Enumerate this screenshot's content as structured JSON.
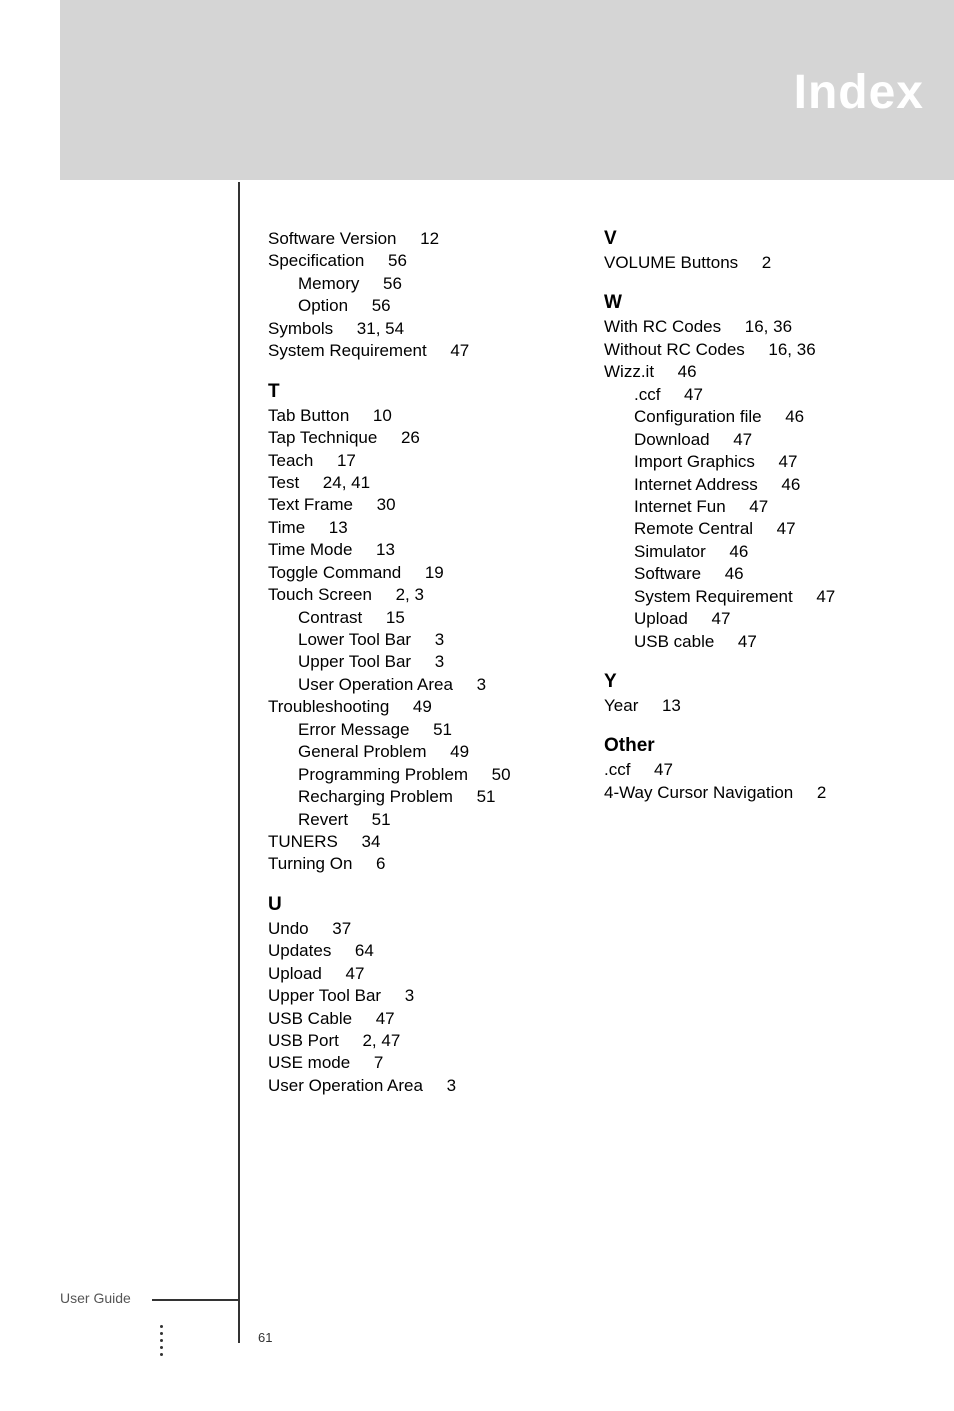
{
  "header": {
    "title": "Index"
  },
  "col1": [
    {
      "type": "entry",
      "text": "Software Version     12"
    },
    {
      "type": "entry",
      "text": "Specification     56"
    },
    {
      "type": "sub",
      "text": "Memory     56"
    },
    {
      "type": "sub",
      "text": "Option     56"
    },
    {
      "type": "entry",
      "text": "Symbols     31, 54"
    },
    {
      "type": "entry",
      "text": "System Requirement     47"
    },
    {
      "type": "letter",
      "text": "T"
    },
    {
      "type": "entry",
      "text": "Tab Button     10"
    },
    {
      "type": "entry",
      "text": "Tap Technique     26"
    },
    {
      "type": "entry",
      "text": "Teach     17"
    },
    {
      "type": "entry",
      "text": "Test     24, 41"
    },
    {
      "type": "entry",
      "text": "Text Frame     30"
    },
    {
      "type": "entry",
      "text": "Time     13"
    },
    {
      "type": "entry",
      "text": "Time Mode     13"
    },
    {
      "type": "entry",
      "text": "Toggle Command     19"
    },
    {
      "type": "entry",
      "text": "Touch Screen     2, 3"
    },
    {
      "type": "sub",
      "text": "Contrast     15"
    },
    {
      "type": "sub",
      "text": "Lower Tool Bar     3"
    },
    {
      "type": "sub",
      "text": "Upper Tool Bar     3"
    },
    {
      "type": "sub",
      "text": "User Operation Area     3"
    },
    {
      "type": "entry",
      "text": "Troubleshooting     49"
    },
    {
      "type": "sub",
      "text": "Error Message     51"
    },
    {
      "type": "sub",
      "text": "General Problem     49"
    },
    {
      "type": "sub",
      "text": "Programming Problem     50"
    },
    {
      "type": "sub",
      "text": "Recharging Problem     51"
    },
    {
      "type": "sub",
      "text": "Revert     51"
    },
    {
      "type": "entry",
      "text": "TUNERS     34"
    },
    {
      "type": "entry",
      "text": "Turning On     6"
    },
    {
      "type": "letter",
      "text": "U"
    },
    {
      "type": "entry",
      "text": "Undo     37"
    },
    {
      "type": "entry",
      "text": "Updates     64"
    },
    {
      "type": "entry",
      "text": "Upload     47"
    },
    {
      "type": "entry",
      "text": "Upper Tool Bar     3"
    },
    {
      "type": "entry",
      "text": "USB Cable     47"
    },
    {
      "type": "entry",
      "text": "USB Port     2, 47"
    },
    {
      "type": "entry",
      "text": "USE mode     7"
    },
    {
      "type": "entry",
      "text": "User Operation Area     3"
    }
  ],
  "col2": [
    {
      "type": "letter",
      "text": "V",
      "first": true
    },
    {
      "type": "entry",
      "text": "VOLUME Buttons     2"
    },
    {
      "type": "letter",
      "text": "W"
    },
    {
      "type": "entry",
      "text": "With RC Codes     16, 36"
    },
    {
      "type": "entry",
      "text": "Without RC Codes     16, 36"
    },
    {
      "type": "entry",
      "text": "Wizz.it     46"
    },
    {
      "type": "sub",
      "text": ".ccf     47"
    },
    {
      "type": "sub",
      "text": "Configuration file     46"
    },
    {
      "type": "sub",
      "text": "Download     47"
    },
    {
      "type": "sub",
      "text": "Import Graphics     47"
    },
    {
      "type": "sub",
      "text": "Internet Address     46"
    },
    {
      "type": "sub",
      "text": "Internet Fun     47"
    },
    {
      "type": "sub",
      "text": "Remote Central     47"
    },
    {
      "type": "sub",
      "text": "Simulator     46"
    },
    {
      "type": "sub",
      "text": "Software     46"
    },
    {
      "type": "sub",
      "text": "System Requirement     47"
    },
    {
      "type": "sub",
      "text": "Upload     47"
    },
    {
      "type": "sub",
      "text": "USB cable     47"
    },
    {
      "type": "letter",
      "text": "Y"
    },
    {
      "type": "entry",
      "text": "Year     13"
    },
    {
      "type": "letter",
      "text": "Other"
    },
    {
      "type": "entry",
      "text": ".ccf     47"
    },
    {
      "type": "entry",
      "text": "4-Way Cursor Navigation     2"
    }
  ],
  "footer": {
    "label": "User Guide",
    "page": "61"
  }
}
